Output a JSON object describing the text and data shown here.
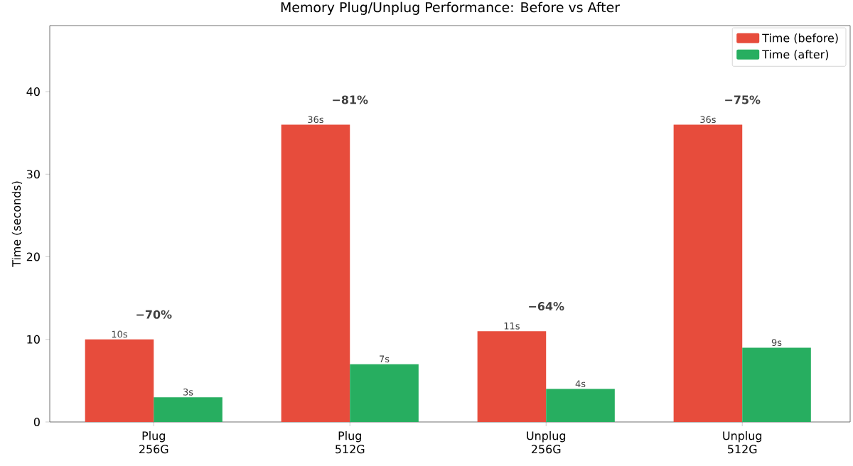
{
  "chart_data": {
    "type": "bar",
    "title": "Memory Plug/Unplug Performance: Before vs After",
    "ylabel": "Time (seconds)",
    "categories": [
      "Plug 256G",
      "Plug 512G",
      "Unplug 256G",
      "Unplug 512G"
    ],
    "series": [
      {
        "name": "Time (before)",
        "color": "#e74c3c",
        "values": [
          10,
          36,
          11,
          36
        ],
        "value_labels": [
          "10s",
          "36s",
          "11s",
          "36s"
        ]
      },
      {
        "name": "Time (after)",
        "color": "#27ae60",
        "values": [
          3,
          7,
          4,
          9
        ],
        "value_labels": [
          "3s",
          "7s",
          "4s",
          "9s"
        ]
      }
    ],
    "annotations": [
      "−70%",
      "−81%",
      "−64%",
      "−75%"
    ],
    "ylim": [
      0,
      48
    ],
    "yticks": [
      0,
      10,
      20,
      30,
      40
    ],
    "legend": "top right",
    "grid": false
  }
}
